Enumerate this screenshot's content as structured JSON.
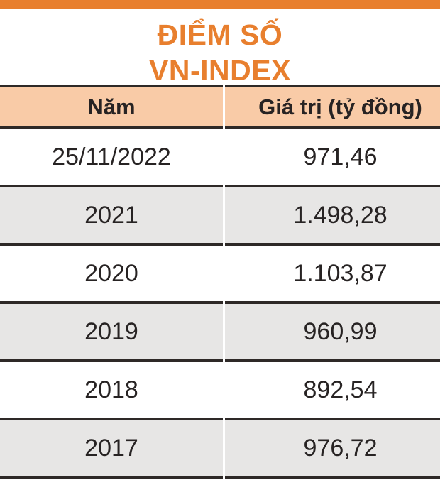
{
  "title": {
    "line1": "ĐIỂM SỐ",
    "line2": "VN-INDEX"
  },
  "colors": {
    "accent_orange": "#e87f2e",
    "header_bg": "#f9cba7",
    "row_alt_bg": "#e7e6e5",
    "rule_dark": "#2e2927",
    "text_dark": "#272323"
  },
  "table": {
    "columns": [
      {
        "label": "Năm"
      },
      {
        "label": "Giá trị (tỷ đồng)"
      }
    ],
    "rows": [
      {
        "year": "25/11/2022",
        "value": "971,46"
      },
      {
        "year": "2021",
        "value": "1.498,28"
      },
      {
        "year": "2020",
        "value": "1.103,87"
      },
      {
        "year": "2019",
        "value": "960,99"
      },
      {
        "year": "2018",
        "value": "892,54"
      },
      {
        "year": "2017",
        "value": "976,72"
      }
    ]
  },
  "chart_data": {
    "type": "table",
    "title": "ĐIỂM SỐ VN-INDEX",
    "columns": [
      "Năm",
      "Giá trị (tỷ đồng)"
    ],
    "categories": [
      "25/11/2022",
      "2021",
      "2020",
      "2019",
      "2018",
      "2017"
    ],
    "values": [
      971.46,
      1498.28,
      1103.87,
      960.99,
      892.54,
      976.72
    ],
    "values_display": [
      "971,46",
      "1.498,28",
      "1.103,87",
      "960,99",
      "892,54",
      "976,72"
    ],
    "notes": "Alternating white/gray rows, peach header band, orange accent bar on top"
  }
}
